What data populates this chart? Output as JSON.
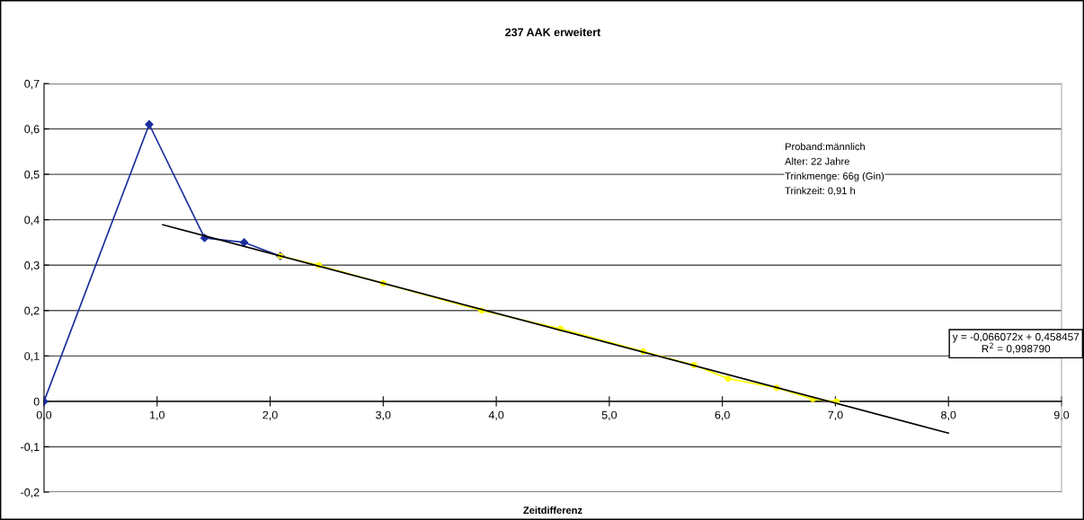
{
  "chart_data": {
    "type": "line",
    "title": "237 AAK erweitert",
    "xlabel": "Zeitdifferenz",
    "series": [
      {
        "color": "#1a2d9c",
        "marker": "diamond",
        "x": [
          0.0,
          0.93,
          1.42,
          1.77,
          2.09
        ],
        "values": [
          0.0,
          0.61,
          0.36,
          0.35,
          0.32
        ]
      },
      {
        "color": "#ffff00",
        "marker": "circle",
        "x": [
          2.09,
          2.43,
          3.0,
          3.87,
          4.57,
          5.3,
          5.75,
          6.05,
          6.48,
          6.8,
          7.01
        ],
        "values": [
          0.32,
          0.3,
          0.26,
          0.2,
          0.16,
          0.11,
          0.08,
          0.05,
          0.03,
          0.005,
          0.0
        ]
      },
      {
        "color": "#000000",
        "marker": "none",
        "x": [
          1.05,
          8.0
        ],
        "values": [
          0.389,
          -0.07
        ]
      }
    ],
    "xlim": [
      0,
      9
    ],
    "ylim": [
      -0.2,
      0.7
    ],
    "xticks": [
      {
        "value": 0,
        "label": "0,0"
      },
      {
        "value": 1,
        "label": "1,0"
      },
      {
        "value": 2,
        "label": "2,0"
      },
      {
        "value": 3,
        "label": "3,0"
      },
      {
        "value": 4,
        "label": "4,0"
      },
      {
        "value": 5,
        "label": "5,0"
      },
      {
        "value": 6,
        "label": "6,0"
      },
      {
        "value": 7,
        "label": "7,0"
      },
      {
        "value": 8,
        "label": "8,0"
      },
      {
        "value": 9,
        "label": "9,0"
      }
    ],
    "yticks": [
      {
        "value": -0.2,
        "label": "-0,2"
      },
      {
        "value": -0.1,
        "label": "-0,1"
      },
      0,
      {
        "value": 0.1,
        "label": "0,1"
      },
      {
        "value": 0.2,
        "label": "0,2"
      },
      {
        "value": 0.3,
        "label": "0,3"
      },
      {
        "value": 0.4,
        "label": "0,4"
      },
      {
        "value": 0.5,
        "label": "0,5"
      },
      {
        "value": 0.6,
        "label": "0,6"
      },
      {
        "value": 0.7,
        "label": "0,7"
      }
    ],
    "grid": "y",
    "legend": false,
    "line_style": "solid",
    "annotations": [
      "Proband:männlich",
      "Alter: 22 Jahre",
      "Trinkmenge: 66g (Gin)",
      "Trinkzeit: 0,91 h",
      "y = -0,066072x + 0,458457",
      "R$^{2}$ = 0,998790"
    ]
  }
}
